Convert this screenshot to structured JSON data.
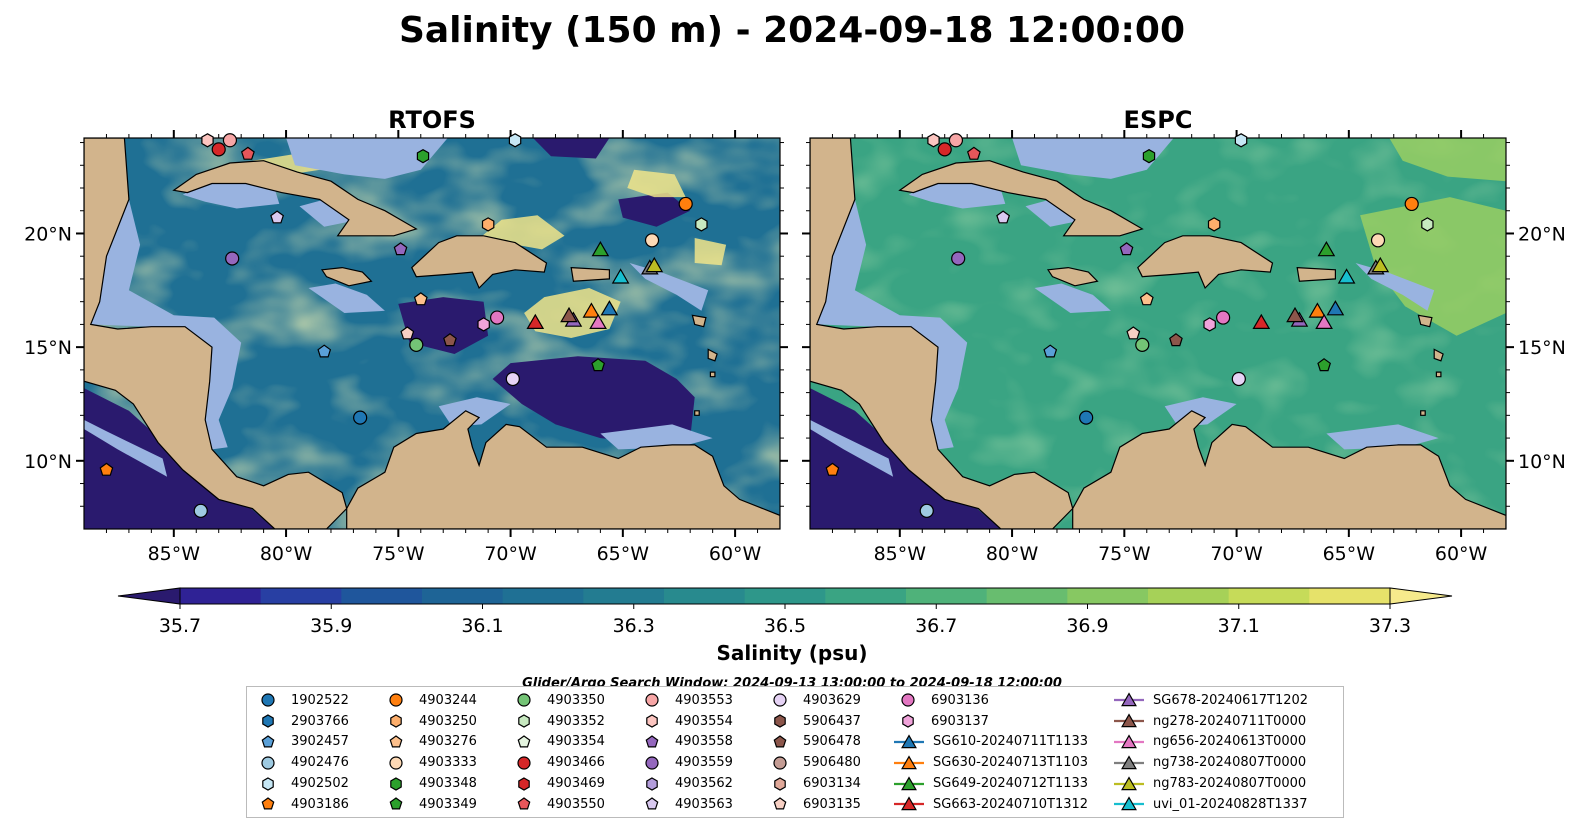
{
  "title": "Salinity (150 m) - 2024-09-18 12:00:00",
  "panels": [
    {
      "name": "RTOFS",
      "field": "rtofs"
    },
    {
      "name": "ESPC",
      "field": "espc"
    }
  ],
  "colorbar": {
    "label": "Salinity (psu)",
    "min": 35.7,
    "max": 37.3,
    "ticks": [
      "35.7",
      "35.9",
      "36.1",
      "36.3",
      "36.5",
      "36.7",
      "36.9",
      "37.1",
      "37.3"
    ],
    "colors": [
      "#2a1a6e",
      "#2f2295",
      "#283fa3",
      "#1f569c",
      "#1e6496",
      "#1f7094",
      "#237c91",
      "#288a8e",
      "#2e978a",
      "#3aa483",
      "#4fb27a",
      "#68bd6f",
      "#87c862",
      "#a6d158",
      "#c6db59",
      "#e6e26a",
      "#f6ea8c"
    ]
  },
  "search_window_text": "Glider/Argo Search Window: 2024-09-13 13:00:00 to 2024-09-18 12:00:00",
  "chart_data": {
    "type": "map",
    "xlim": [
      -89,
      -58
    ],
    "ylim": [
      7,
      24.2
    ],
    "x_ticks": [
      {
        "lon": -85,
        "label": "85°W"
      },
      {
        "lon": -80,
        "label": "80°W"
      },
      {
        "lon": -75,
        "label": "75°W"
      },
      {
        "lon": -70,
        "label": "70°W"
      },
      {
        "lon": -65,
        "label": "65°W"
      },
      {
        "lon": -60,
        "label": "60°W"
      }
    ],
    "y_ticks": [
      {
        "lat": 20,
        "label": "20°N"
      },
      {
        "lat": 15,
        "label": "15°N"
      },
      {
        "lat": 10,
        "label": "10°N"
      }
    ],
    "markers": [
      {
        "id": "1902522",
        "shape": "circle",
        "color": "#1f77b4",
        "lon": -76.7,
        "lat": 11.9
      },
      {
        "id": "2903766",
        "shape": "hexagon",
        "color": "#1f77b4",
        "lon": null,
        "lat": null
      },
      {
        "id": "3902457",
        "shape": "pentagon",
        "color": "#5aa0d8",
        "lon": -78.3,
        "lat": 14.8
      },
      {
        "id": "4902476",
        "shape": "circle",
        "color": "#9ecae1",
        "lon": -83.8,
        "lat": 7.8
      },
      {
        "id": "4902502",
        "shape": "hexagon",
        "color": "#c6e7f5",
        "lon": -69.8,
        "lat": 24.1
      },
      {
        "id": "4903186",
        "shape": "pentagon",
        "color": "#ff7f0e",
        "lon": -88.0,
        "lat": 9.6
      },
      {
        "id": "4903244",
        "shape": "circle",
        "color": "#ff7f0e",
        "lon": -62.2,
        "lat": 21.3
      },
      {
        "id": "4903250",
        "shape": "hexagon",
        "color": "#fdae6b",
        "lon": -71.0,
        "lat": 20.4
      },
      {
        "id": "4903276",
        "shape": "pentagon",
        "color": "#fdc08c",
        "lon": -74.0,
        "lat": 17.1
      },
      {
        "id": "4903333",
        "shape": "circle",
        "color": "#fdd9b5",
        "lon": -63.7,
        "lat": 19.7
      },
      {
        "id": "4903348",
        "shape": "hexagon",
        "color": "#2ca02c",
        "lon": -73.9,
        "lat": 23.4
      },
      {
        "id": "4903349",
        "shape": "pentagon",
        "color": "#2ca02c",
        "lon": -66.1,
        "lat": 14.2
      },
      {
        "id": "4903350",
        "shape": "circle",
        "color": "#74c476",
        "lon": -74.2,
        "lat": 15.1
      },
      {
        "id": "4903352",
        "shape": "hexagon",
        "color": "#c7e9c0",
        "lon": -61.5,
        "lat": 20.4
      },
      {
        "id": "4903354",
        "shape": "pentagon",
        "color": "#e5f5e0",
        "lon": null,
        "lat": null
      },
      {
        "id": "4903466",
        "shape": "circle",
        "color": "#d62728",
        "lon": -83.0,
        "lat": 23.7
      },
      {
        "id": "4903469",
        "shape": "hexagon",
        "color": "#d62728",
        "lon": null,
        "lat": null
      },
      {
        "id": "4903550",
        "shape": "pentagon",
        "color": "#e7565a",
        "lon": -81.7,
        "lat": 23.5
      },
      {
        "id": "4903553",
        "shape": "circle",
        "color": "#f7a6a6",
        "lon": -82.5,
        "lat": 24.1
      },
      {
        "id": "4903554",
        "shape": "hexagon",
        "color": "#fcc5c0",
        "lon": -83.5,
        "lat": 24.1
      },
      {
        "id": "4903558",
        "shape": "pentagon",
        "color": "#9467bd",
        "lon": -74.9,
        "lat": 19.3
      },
      {
        "id": "4903559",
        "shape": "circle",
        "color": "#9467bd",
        "lon": -82.4,
        "lat": 18.9
      },
      {
        "id": "4903562",
        "shape": "hexagon",
        "color": "#b39ddb",
        "lon": null,
        "lat": null
      },
      {
        "id": "4903563",
        "shape": "pentagon",
        "color": "#d9c9f0",
        "lon": -80.4,
        "lat": 20.7
      },
      {
        "id": "4903629",
        "shape": "circle",
        "color": "#e6d3f5",
        "lon": -69.9,
        "lat": 13.6
      },
      {
        "id": "5906437",
        "shape": "hexagon",
        "color": "#8c564b",
        "lon": null,
        "lat": null
      },
      {
        "id": "5906478",
        "shape": "pentagon",
        "color": "#8c564b",
        "lon": -72.7,
        "lat": 15.3
      },
      {
        "id": "5906480",
        "shape": "circle",
        "color": "#c49c94",
        "lon": null,
        "lat": null
      },
      {
        "id": "6903134",
        "shape": "hexagon",
        "color": "#e0a899",
        "lon": null,
        "lat": null
      },
      {
        "id": "6903135",
        "shape": "pentagon",
        "color": "#f7d0c4",
        "lon": -74.6,
        "lat": 15.6
      },
      {
        "id": "6903136",
        "shape": "circle",
        "color": "#e377c2",
        "lon": -70.6,
        "lat": 16.3
      },
      {
        "id": "6903137",
        "shape": "hexagon",
        "color": "#f0a3da",
        "lon": -71.2,
        "lat": 16.0
      }
    ],
    "gliders": [
      {
        "id": "SG610-20240711T1133",
        "color": "#1f77b4",
        "lon": -65.6,
        "lat": 16.7
      },
      {
        "id": "SG630-20240713T1103",
        "color": "#ff7f0e",
        "lon": -66.4,
        "lat": 16.6
      },
      {
        "id": "SG649-20240712T1133",
        "color": "#2ca02c",
        "lon": -66.0,
        "lat": 19.3
      },
      {
        "id": "SG663-20240710T1312",
        "color": "#d62728",
        "lon": -68.9,
        "lat": 16.1
      },
      {
        "id": "SG678-20240617T1202",
        "color": "#9467bd",
        "lon": -67.2,
        "lat": 16.2
      },
      {
        "id": "ng278-20240711T0000",
        "color": "#8c564b",
        "lon": -67.4,
        "lat": 16.4
      },
      {
        "id": "ng656-20240613T0000",
        "color": "#e377c2",
        "lon": -66.1,
        "lat": 16.1
      },
      {
        "id": "ng738-20240807T0000",
        "color": "#7f7f7f",
        "lon": -63.8,
        "lat": 18.5
      },
      {
        "id": "ng783-20240807T0000",
        "color": "#bcbd22",
        "lon": -63.6,
        "lat": 18.6
      },
      {
        "id": "uvi_01-20240828T1337",
        "color": "#17becf",
        "lon": -65.1,
        "lat": 18.1
      }
    ]
  },
  "legend_columns": [
    [
      "1902522",
      "2903766",
      "3902457",
      "4902476",
      "4902502",
      "4903186"
    ],
    [
      "4903244",
      "4903250",
      "4903276",
      "4903333",
      "4903348",
      "4903349"
    ],
    [
      "4903350",
      "4903352",
      "4903354",
      "4903466",
      "4903469",
      "4903550"
    ],
    [
      "4903553",
      "4903554",
      "4903558",
      "4903559",
      "4903562",
      "4903563"
    ],
    [
      "4903629",
      "5906437",
      "5906478",
      "5906480",
      "6903134",
      "6903135"
    ],
    [
      "6903136",
      "6903137",
      "SG610-20240711T1133",
      "SG630-20240713T1103",
      "SG649-20240712T1133",
      "SG663-20240710T1312"
    ],
    [
      "SG678-20240617T1202",
      "ng278-20240711T0000",
      "ng656-20240613T0000",
      "ng738-20240807T0000",
      "ng783-20240807T0000",
      "uvi_01-20240828T1337"
    ]
  ],
  "colors": {
    "land": "#d2b48c",
    "shelf": "#99b3e0",
    "rtofs_base": "#1f7094",
    "espc_base": "#3aa483"
  }
}
